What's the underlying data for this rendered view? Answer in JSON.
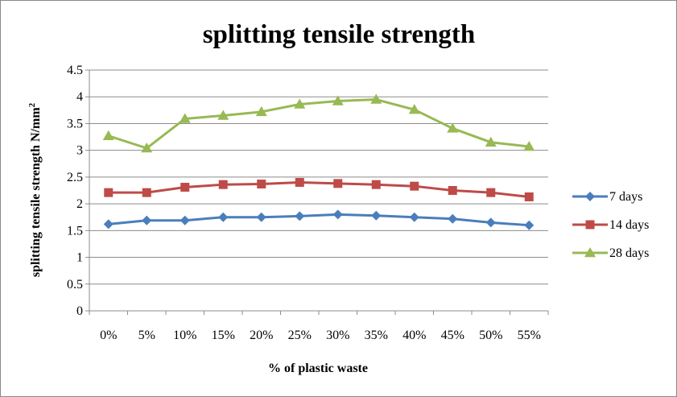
{
  "chart_data": {
    "type": "line",
    "title": "splitting tensile strength",
    "xlabel": "% of plastic waste",
    "ylabel_main": "splitting tensile strength N/mm",
    "ylabel_sup": "2",
    "categories": [
      "0%",
      "5%",
      "10%",
      "15%",
      "20%",
      "25%",
      "30%",
      "35%",
      "40%",
      "45%",
      "50%",
      "55%"
    ],
    "ylim": [
      0,
      4.5
    ],
    "yticks": [
      "0",
      "0.5",
      "1",
      "1.5",
      "2",
      "2.5",
      "3",
      "3.5",
      "4",
      "4.5"
    ],
    "grid": true,
    "legend_position": "right",
    "series": [
      {
        "name": "7 days",
        "color": "#4a7ebb",
        "marker": "diamond",
        "values": [
          1.62,
          1.69,
          1.69,
          1.75,
          1.75,
          1.77,
          1.8,
          1.78,
          1.75,
          1.72,
          1.65,
          1.6
        ]
      },
      {
        "name": "14 days",
        "color": "#be4b48",
        "marker": "square",
        "values": [
          2.21,
          2.21,
          2.31,
          2.36,
          2.37,
          2.4,
          2.38,
          2.36,
          2.33,
          2.25,
          2.21,
          2.13
        ]
      },
      {
        "name": "28 days",
        "color": "#98b954",
        "marker": "triangle",
        "values": [
          3.27,
          3.04,
          3.59,
          3.65,
          3.72,
          3.86,
          3.92,
          3.95,
          3.76,
          3.41,
          3.15,
          3.07
        ]
      }
    ]
  }
}
